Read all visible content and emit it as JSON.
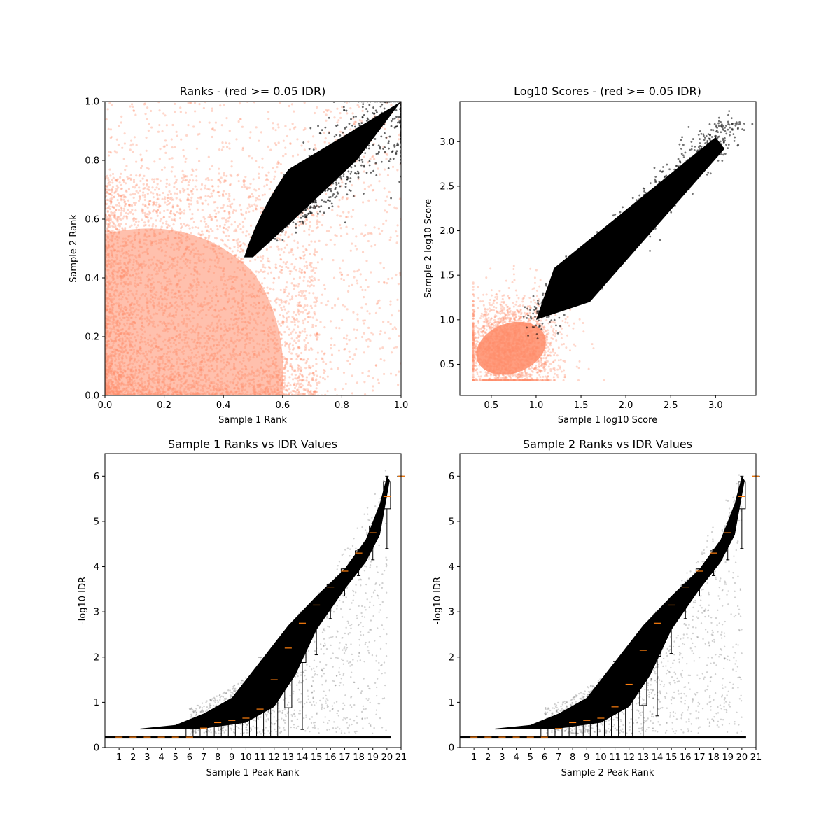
{
  "chart_data": [
    {
      "type": "scatter",
      "title": "Ranks - (red >= 0.05 IDR)",
      "xlabel": "Sample 1 Rank",
      "ylabel": "Sample 2 Rank",
      "xlim": [
        0.0,
        1.0
      ],
      "ylim": [
        0.0,
        1.0
      ],
      "xticks": [
        "0.0",
        "0.2",
        "0.4",
        "0.6",
        "0.8",
        "1.0"
      ],
      "yticks": [
        "0.0",
        "0.2",
        "0.4",
        "0.6",
        "0.8",
        "1.0"
      ],
      "colors": {
        "below_threshold": "#000000",
        "above_threshold": "#ff8c69"
      },
      "series": [
        {
          "label": "red",
          "color": "#ff8c69",
          "description": "peaks with IDR >= 0.05",
          "extent_x": [
            0.0,
            1.0
          ],
          "extent_y": [
            0.0,
            1.0
          ]
        },
        {
          "label": "black",
          "color": "#000000",
          "description": "peaks with IDR < 0.05",
          "tip": [
            0.47,
            0.47
          ],
          "end": [
            1.0,
            1.0
          ]
        }
      ]
    },
    {
      "type": "scatter",
      "title": "Log10 Scores - (red >= 0.05 IDR)",
      "xlabel": "Sample 1 log10 Score",
      "ylabel": "Sample 2 log10 Score",
      "xlim": [
        0.15,
        3.45
      ],
      "ylim": [
        0.15,
        3.45
      ],
      "xticks": [
        "0.5",
        "1.0",
        "1.5",
        "2.0",
        "2.5",
        "3.0"
      ],
      "yticks": [
        "0.5",
        "1.0",
        "1.5",
        "2.0",
        "2.5",
        "3.0"
      ],
      "colors": {
        "below_threshold": "#000000",
        "above_threshold": "#ff8c69"
      },
      "series": [
        {
          "label": "red",
          "color": "#ff8c69",
          "center": [
            0.7,
            0.65
          ]
        },
        {
          "label": "black",
          "color": "#000000",
          "start": [
            1.0,
            1.0
          ],
          "end": [
            3.3,
            3.25
          ]
        }
      ]
    },
    {
      "type": "scatter",
      "title": "Sample 1 Ranks vs IDR Values",
      "xlabel": "Sample 1 Peak Rank",
      "ylabel": "-log10 IDR",
      "xlim": [
        0,
        21
      ],
      "ylim": [
        0,
        6.5
      ],
      "xticks": [
        "1",
        "2",
        "3",
        "4",
        "5",
        "6",
        "7",
        "8",
        "9",
        "10",
        "11",
        "12",
        "13",
        "14",
        "15",
        "16",
        "17",
        "18",
        "19",
        "20",
        "21"
      ],
      "yticks": [
        "0",
        "1",
        "2",
        "3",
        "4",
        "5",
        "6"
      ],
      "boxplot": {
        "positions": [
          1,
          2,
          3,
          4,
          5,
          6,
          7,
          8,
          9,
          10,
          11,
          12,
          13,
          14,
          15,
          16,
          17,
          18,
          19,
          20,
          21
        ],
        "median": [
          0.23,
          0.23,
          0.23,
          0.23,
          0.23,
          0.23,
          0.43,
          0.55,
          0.6,
          0.65,
          0.85,
          1.5,
          2.2,
          2.75,
          3.15,
          3.55,
          3.9,
          4.3,
          4.75,
          5.55,
          6.0
        ],
        "q1": [
          0.23,
          0.23,
          0.23,
          0.23,
          0.23,
          0.23,
          0.23,
          0.23,
          0.23,
          0.23,
          0.23,
          0.23,
          0.88,
          1.88,
          2.8,
          3.35,
          3.7,
          4.13,
          4.62,
          5.28,
          6.0
        ],
        "q3": [
          0.23,
          0.23,
          0.23,
          0.23,
          0.23,
          0.43,
          0.45,
          0.53,
          0.85,
          1.1,
          1.45,
          2.02,
          2.5,
          2.95,
          3.2,
          3.6,
          3.95,
          4.35,
          4.9,
          5.88,
          6.0
        ],
        "whislo": [
          0.23,
          0.23,
          0.23,
          0.23,
          0.23,
          0.23,
          0.23,
          0.23,
          0.23,
          0.23,
          0.23,
          0.23,
          0.23,
          0.4,
          2.05,
          2.85,
          3.35,
          3.8,
          4.15,
          4.4,
          6.0
        ],
        "whishi": [
          0.23,
          0.23,
          0.23,
          0.23,
          0.23,
          0.48,
          0.5,
          0.55,
          0.95,
          1.2,
          2.0,
          2.05,
          2.52,
          3.0,
          3.25,
          3.62,
          3.95,
          4.38,
          4.95,
          6.0,
          6.0
        ]
      },
      "colors": {
        "points": "#000000",
        "median": "#ff7f0e"
      }
    },
    {
      "type": "scatter",
      "title": "Sample 2 Ranks vs IDR Values",
      "xlabel": "Sample 2 Peak Rank",
      "ylabel": "-log10 IDR",
      "xlim": [
        0,
        21
      ],
      "ylim": [
        0,
        6.5
      ],
      "xticks": [
        "1",
        "2",
        "3",
        "4",
        "5",
        "6",
        "7",
        "8",
        "9",
        "10",
        "11",
        "12",
        "13",
        "14",
        "15",
        "16",
        "17",
        "18",
        "19",
        "20",
        "21"
      ],
      "yticks": [
        "0",
        "1",
        "2",
        "3",
        "4",
        "5",
        "6"
      ],
      "boxplot": {
        "positions": [
          1,
          2,
          3,
          4,
          5,
          6,
          7,
          8,
          9,
          10,
          11,
          12,
          13,
          14,
          15,
          16,
          17,
          18,
          19,
          20,
          21
        ],
        "median": [
          0.23,
          0.23,
          0.23,
          0.23,
          0.23,
          0.23,
          0.42,
          0.55,
          0.6,
          0.65,
          0.9,
          1.4,
          2.15,
          2.75,
          3.15,
          3.55,
          3.9,
          4.3,
          4.75,
          5.55,
          6.0
        ],
        "q1": [
          0.23,
          0.23,
          0.23,
          0.23,
          0.23,
          0.23,
          0.23,
          0.23,
          0.23,
          0.23,
          0.23,
          0.23,
          0.93,
          2.02,
          2.8,
          3.35,
          3.7,
          4.13,
          4.62,
          5.28,
          6.0
        ],
        "q3": [
          0.23,
          0.23,
          0.23,
          0.23,
          0.23,
          0.43,
          0.45,
          0.53,
          0.85,
          1.12,
          1.5,
          2.02,
          2.5,
          2.95,
          3.2,
          3.6,
          3.95,
          4.35,
          4.9,
          5.88,
          6.0
        ],
        "whislo": [
          0.23,
          0.23,
          0.23,
          0.23,
          0.23,
          0.23,
          0.23,
          0.23,
          0.23,
          0.23,
          0.23,
          0.23,
          0.23,
          0.7,
          2.08,
          2.85,
          3.35,
          3.8,
          4.15,
          4.4,
          6.0
        ],
        "whishi": [
          0.23,
          0.23,
          0.23,
          0.23,
          0.23,
          0.48,
          0.5,
          0.55,
          0.95,
          1.2,
          1.9,
          2.05,
          2.52,
          3.0,
          3.25,
          3.62,
          3.95,
          4.38,
          4.95,
          6.0,
          6.0
        ]
      },
      "colors": {
        "points": "#000000",
        "median": "#ff7f0e"
      }
    }
  ]
}
